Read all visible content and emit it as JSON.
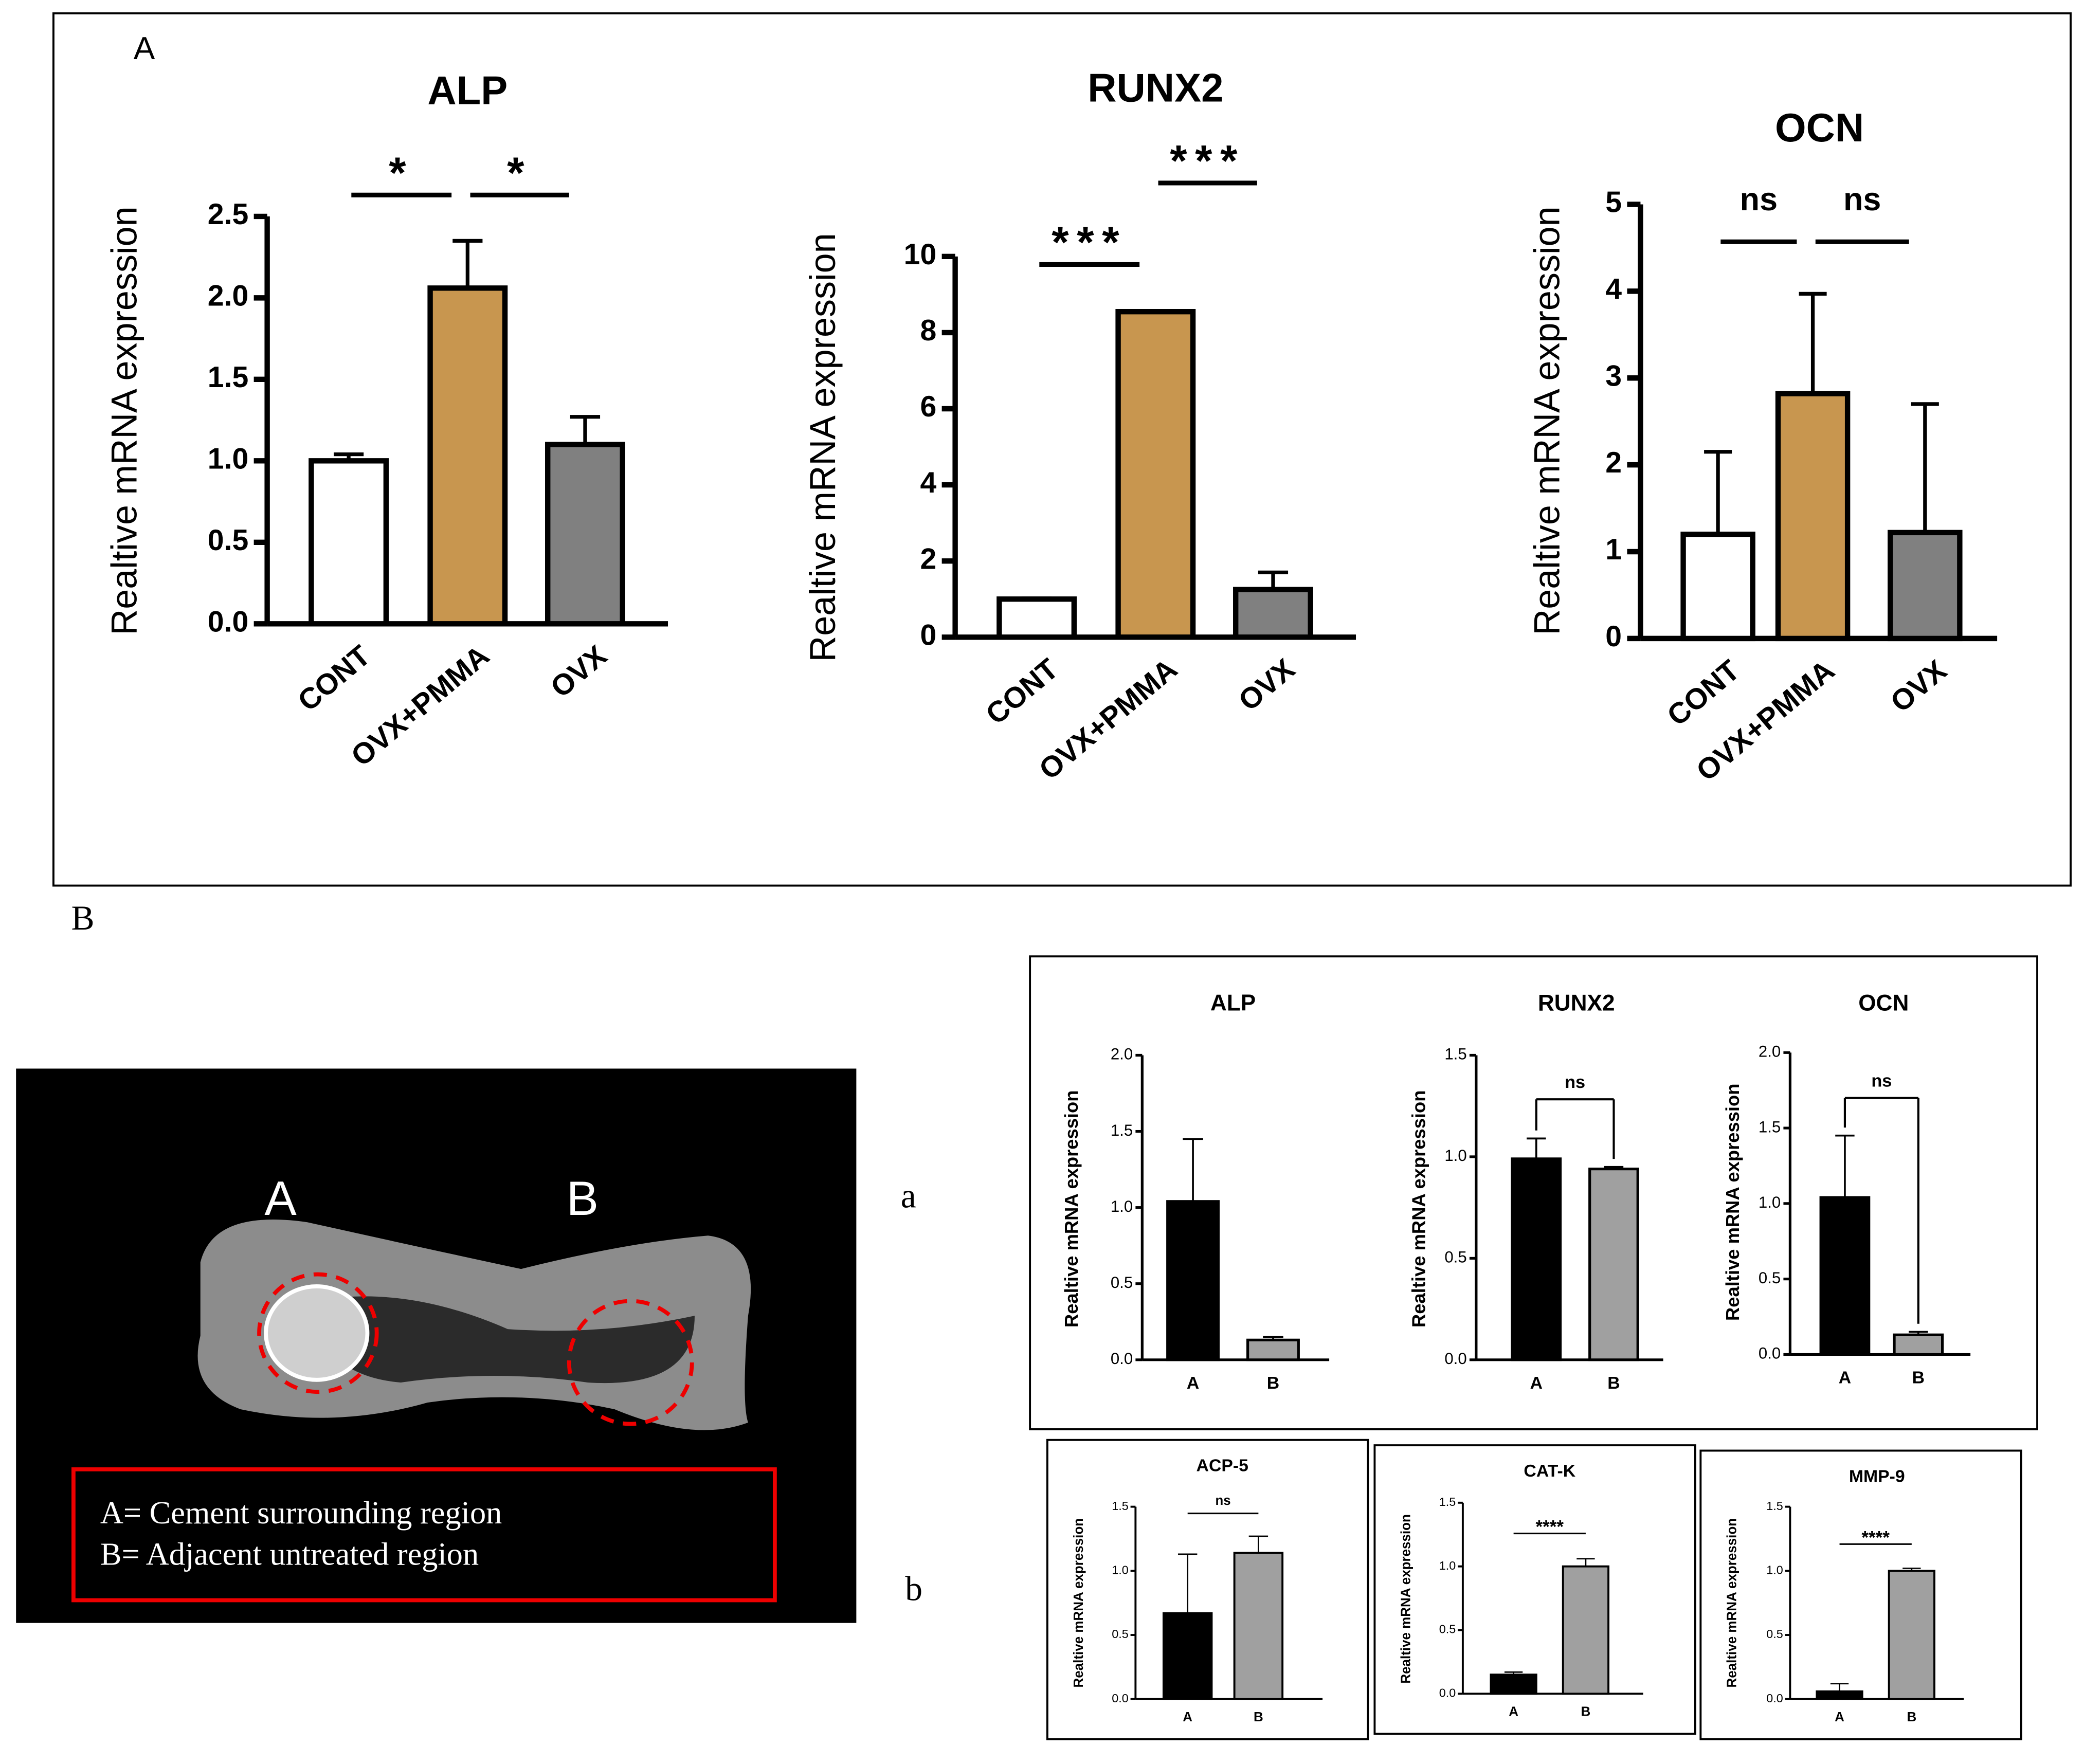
{
  "panel_labels": [
    "A",
    "B",
    "a",
    "b"
  ],
  "image": {
    "labels": [
      "A",
      "B"
    ],
    "legend": [
      "A= Cement surrounding region",
      "B= Adjacent untreated region"
    ]
  },
  "chart_data": [
    {
      "type": "bar",
      "title": "ALP",
      "y_label": "Realtive mRNA expression",
      "categories": [
        "CONT",
        "OVX+PMMA",
        "OVX"
      ],
      "values": [
        1.0,
        2.06,
        1.1
      ],
      "errors": [
        0.04,
        0.29,
        0.17
      ],
      "colors": [
        "#ffffff",
        "#c8964f",
        "#808080"
      ],
      "ylim": [
        0,
        2.5
      ],
      "yticks": [
        {
          "value": 0,
          "label": "0.0"
        },
        0.5,
        {
          "value": 1,
          "label": "1.0"
        },
        1.5,
        {
          "value": 2,
          "label": "2.0"
        },
        2.5
      ],
      "annotations": [
        {
          "label": "*",
          "between": [
            "CONT",
            "OVX+PMMA"
          ]
        },
        {
          "label": "*",
          "between": [
            "OVX+PMMA",
            "OVX"
          ]
        }
      ]
    },
    {
      "type": "bar",
      "title": "RUNX2",
      "y_label": "Realtive mRNA expression",
      "categories": [
        "CONT",
        "OVX+PMMA",
        "OVX"
      ],
      "values": [
        1.0,
        8.55,
        1.25
      ],
      "errors": [
        0.02,
        0,
        0.45
      ],
      "colors": [
        "#ffffff",
        "#c8964f",
        "#808080"
      ],
      "ylim": [
        0,
        10
      ],
      "yticks": [
        0,
        2,
        4,
        6,
        8,
        10
      ],
      "annotations": [
        {
          "label": "***",
          "between": [
            "CONT",
            "OVX+PMMA"
          ]
        },
        {
          "label": "***",
          "between": [
            "OVX+PMMA",
            "OVX"
          ]
        }
      ]
    },
    {
      "type": "bar",
      "title": "OCN",
      "y_label": "Realtive mRNA expression",
      "categories": [
        "CONT",
        "OVX+PMMA",
        "OVX"
      ],
      "values": [
        1.2,
        2.82,
        1.22
      ],
      "errors": [
        0.95,
        1.15,
        1.48
      ],
      "colors": [
        "#ffffff",
        "#c8964f",
        "#808080"
      ],
      "ylim": [
        0,
        5
      ],
      "yticks": [
        0,
        1,
        2,
        3,
        4,
        5
      ],
      "annotations": [
        {
          "label": "ns",
          "between": [
            "CONT",
            "OVX+PMMA"
          ]
        },
        {
          "label": "ns",
          "between": [
            "OVX+PMMA",
            "OVX"
          ]
        }
      ]
    },
    {
      "type": "bar",
      "title": "ALP",
      "y_label": "Realtive mRNA expression",
      "categories": [
        "A",
        "B"
      ],
      "values": [
        1.04,
        0.13
      ],
      "errors": [
        0.41,
        0.02
      ],
      "colors": [
        "#000000",
        "#a0a0a0"
      ],
      "ylim": [
        0,
        2
      ],
      "yticks": [
        {
          "value": 0,
          "label": "0.0"
        },
        0.5,
        {
          "value": 1,
          "label": "1.0"
        },
        1.5,
        {
          "value": 2,
          "label": "2.0"
        }
      ],
      "annotations": []
    },
    {
      "type": "bar",
      "title": "RUNX2",
      "y_label": "Realtive mRNA expression",
      "categories": [
        "A",
        "B"
      ],
      "values": [
        0.99,
        0.94
      ],
      "errors": [
        0.1,
        0.01
      ],
      "colors": [
        "#000000",
        "#a0a0a0"
      ],
      "ylim": [
        0,
        1.5
      ],
      "yticks": [
        {
          "value": 0,
          "label": "0.0"
        },
        0.5,
        {
          "value": 1,
          "label": "1.0"
        },
        1.5
      ],
      "annotations": [
        {
          "label": "ns",
          "between": [
            "A",
            "B"
          ]
        }
      ]
    },
    {
      "type": "bar",
      "title": "OCN",
      "y_label": "Realtive mRNA expression",
      "categories": [
        "A",
        "B"
      ],
      "values": [
        1.04,
        0.13
      ],
      "errors": [
        0.41,
        0.02
      ],
      "colors": [
        "#000000",
        "#a0a0a0"
      ],
      "ylim": [
        0,
        2
      ],
      "yticks": [
        {
          "value": 0,
          "label": "0.0"
        },
        0.5,
        {
          "value": 1,
          "label": "1.0"
        },
        1.5,
        {
          "value": 2,
          "label": "2.0"
        }
      ],
      "annotations": [
        {
          "label": "ns",
          "between": [
            "A",
            "B"
          ]
        }
      ]
    },
    {
      "type": "bar",
      "title": "ACP-5",
      "y_label": "Realtive mRNA expression",
      "categories": [
        "A",
        "B"
      ],
      "values": [
        0.67,
        1.14
      ],
      "errors": [
        0.46,
        0.13
      ],
      "colors": [
        "#000000",
        "#a0a0a0"
      ],
      "ylim": [
        0,
        1.5
      ],
      "yticks": [
        {
          "value": 0,
          "label": "0.0"
        },
        0.5,
        {
          "value": 1,
          "label": "1.0"
        },
        1.5
      ],
      "annotations": [
        {
          "label": "ns",
          "between": [
            "A",
            "B"
          ]
        }
      ]
    },
    {
      "type": "bar",
      "title": "CAT-K",
      "y_label": "Realtive mRNA expression",
      "categories": [
        "A",
        "B"
      ],
      "values": [
        0.15,
        1.0
      ],
      "errors": [
        0.02,
        0.06
      ],
      "colors": [
        "#000000",
        "#a0a0a0"
      ],
      "ylim": [
        0,
        1.5
      ],
      "yticks": [
        {
          "value": 0,
          "label": "0.0"
        },
        0.5,
        {
          "value": 1,
          "label": "1.0"
        },
        1.5
      ],
      "annotations": [
        {
          "label": "****",
          "between": [
            "A",
            "B"
          ]
        }
      ]
    },
    {
      "type": "bar",
      "title": "MMP-9",
      "y_label": "Realtive mRNA expression",
      "categories": [
        "A",
        "B"
      ],
      "values": [
        0.06,
        1.0
      ],
      "errors": [
        0.06,
        0.02
      ],
      "colors": [
        "#000000",
        "#a0a0a0"
      ],
      "ylim": [
        0,
        1.5
      ],
      "yticks": [
        {
          "value": 0,
          "label": "0.0"
        },
        0.5,
        {
          "value": 1,
          "label": "1.0"
        },
        1.5
      ],
      "annotations": [
        {
          "label": "****",
          "between": [
            "A",
            "B"
          ]
        }
      ]
    }
  ]
}
